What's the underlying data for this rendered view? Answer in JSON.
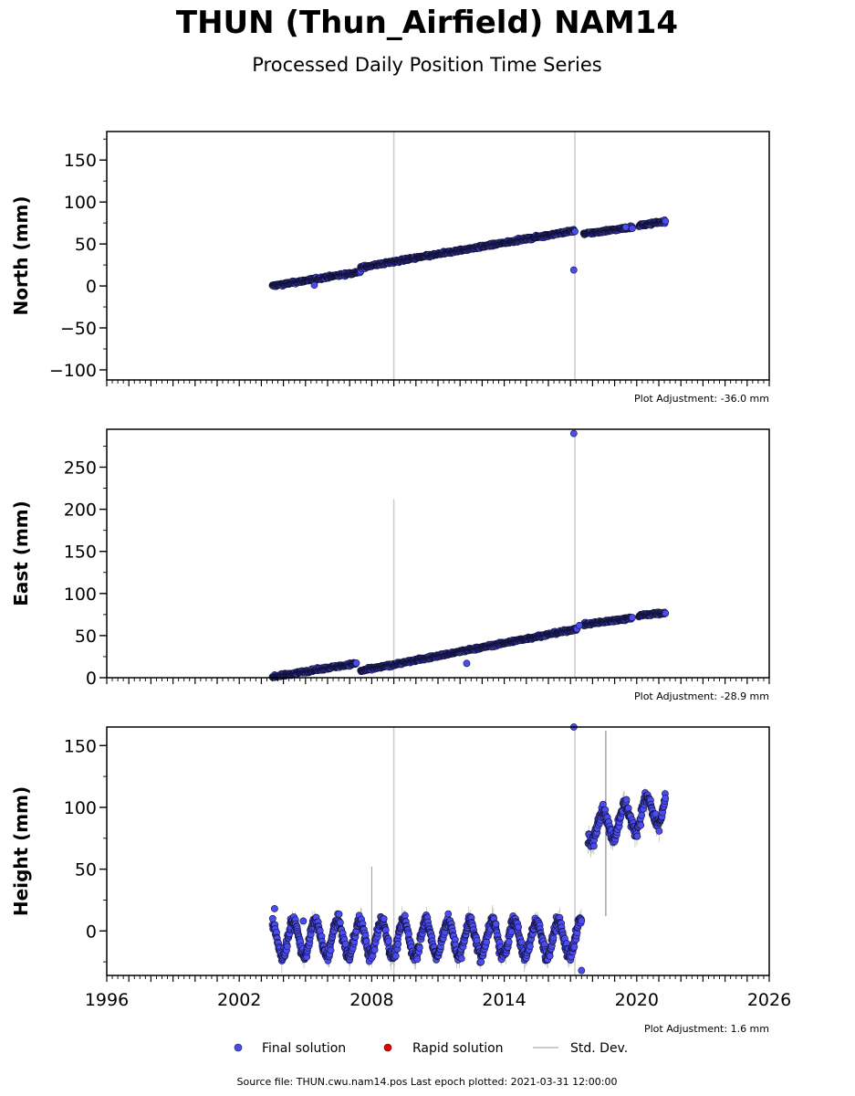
{
  "title": "THUN (Thun_Airfield) NAM14",
  "subtitle": "Processed Daily Position Time Series",
  "footer": "Source file: THUN.cwu.nam14.pos  Last epoch plotted: 2021-03-31 12:00:00",
  "legend": {
    "final": "Final solution",
    "rapid": "Rapid solution",
    "stddev": "Std. Dev."
  },
  "colors": {
    "final_fill": "#4b4bf2",
    "final_edge": "#111133",
    "rapid": "#e00000",
    "stddev": "#bbbbbb",
    "vline": "#cccccc"
  },
  "chart_data": [
    {
      "type": "scatter",
      "ylabel": "North (mm)",
      "adjustment": "Plot Adjustment: -36.0 mm",
      "xlim": [
        1996,
        2026
      ],
      "ylim": [
        -112,
        184
      ],
      "yticks": [
        -100,
        -50,
        0,
        50,
        100,
        150
      ],
      "ytick_labels": [
        "−100",
        "−50",
        "0",
        "50",
        "100",
        "150"
      ],
      "vlines": [
        2009.0,
        2017.2
      ],
      "segments": [
        {
          "x0": 2003.5,
          "x1": 2007.5,
          "y0": 0,
          "y1": 17
        },
        {
          "x0": 2007.5,
          "x1": 2017.2,
          "y0": 22,
          "y1": 66
        },
        {
          "x0": 2017.6,
          "x1": 2019.8,
          "y0": 62,
          "y1": 70
        },
        {
          "x0": 2020.1,
          "x1": 2021.3,
          "y0": 72,
          "y1": 77
        }
      ],
      "outliers": [
        {
          "x": 2017.15,
          "y": 19
        },
        {
          "x": 2005.4,
          "y": 1
        },
        {
          "x": 2019.5,
          "y": 70
        }
      ]
    },
    {
      "type": "scatter",
      "ylabel": "East (mm)",
      "adjustment": "Plot Adjustment: -28.9 mm",
      "xlim": [
        1996,
        2026
      ],
      "ylim": [
        0,
        295
      ],
      "yticks": [
        0,
        50,
        100,
        150,
        200,
        250
      ],
      "ytick_labels": [
        "0",
        "50",
        "100",
        "150",
        "200",
        "250"
      ],
      "vlines": [
        2009.0,
        2017.2
      ],
      "spike": {
        "x": 2009.0,
        "y": 212
      },
      "segments": [
        {
          "x0": 2003.5,
          "x1": 2007.3,
          "y0": 1,
          "y1": 17
        },
        {
          "x0": 2007.5,
          "x1": 2017.3,
          "y0": 8,
          "y1": 58
        },
        {
          "x0": 2017.6,
          "x1": 2019.8,
          "y0": 63,
          "y1": 71
        },
        {
          "x0": 2020.1,
          "x1": 2021.3,
          "y0": 74,
          "y1": 77
        }
      ],
      "outliers": [
        {
          "x": 2017.15,
          "y": 290
        },
        {
          "x": 2012.3,
          "y": 17
        },
        {
          "x": 2017.4,
          "y": 62
        }
      ]
    },
    {
      "type": "scatter",
      "ylabel": "Height (mm)",
      "adjustment": "Plot Adjustment: 1.6 mm",
      "xlim": [
        1996,
        2026
      ],
      "ylim": [
        -36,
        165
      ],
      "yticks": [
        0,
        50,
        100,
        150
      ],
      "ytick_labels": [
        "0",
        "50",
        "100",
        "150"
      ],
      "xticks": [
        1996,
        2002,
        2008,
        2014,
        2020,
        2026
      ],
      "xtick_labels": [
        "1996",
        "2002",
        "2008",
        "2014",
        "2020",
        "2026"
      ],
      "vlines": [
        2009.0,
        2017.2
      ],
      "segments": [
        {
          "x0": 2003.5,
          "x1": 2017.5,
          "y0": -6,
          "y1": -6,
          "amp": 14
        },
        {
          "x0": 2017.8,
          "x1": 2021.3,
          "y0": 82,
          "y1": 100,
          "amp": 12
        }
      ],
      "outliers": [
        {
          "x": 2003.6,
          "y": 18
        },
        {
          "x": 2017.15,
          "y": 165
        },
        {
          "x": 2017.5,
          "y": -32
        },
        {
          "x": 2004.9,
          "y": 8
        }
      ]
    }
  ]
}
